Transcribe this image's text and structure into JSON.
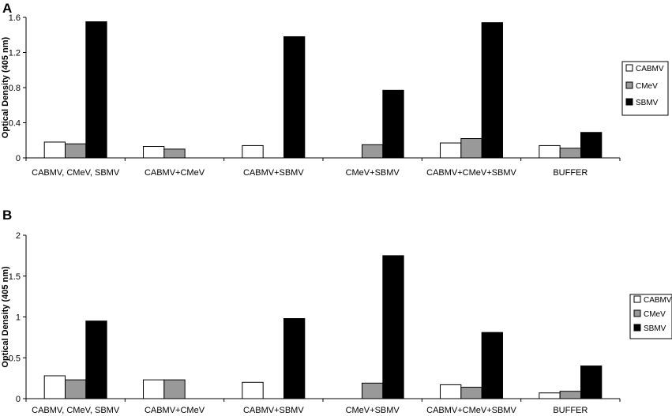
{
  "chart_data": [
    {
      "panel": "A",
      "type": "bar",
      "ylabel": "Optical Density (405 nm)",
      "ylim": [
        0,
        1.6
      ],
      "yticks": [
        "0",
        "0.4",
        "0.8",
        "1.2",
        "1.6"
      ],
      "categories": [
        "CABMV, CMeV, SBMV",
        "CABMV+CMeV",
        "CABMV+SBMV",
        "CMeV+SBMV",
        "CABMV+CMeV+SBMV",
        "BUFFER"
      ],
      "series": [
        {
          "name": "CABMV",
          "color": "#ffffff",
          "values": [
            0.18,
            0.13,
            0.14,
            null,
            0.17,
            0.14
          ]
        },
        {
          "name": "CMeV",
          "color": "#999999",
          "values": [
            0.16,
            0.1,
            null,
            0.15,
            0.22,
            0.11
          ]
        },
        {
          "name": "SBMV",
          "color": "#000000",
          "values": [
            1.55,
            null,
            1.38,
            0.77,
            1.54,
            0.29
          ]
        }
      ],
      "legend_position": "right",
      "grid": false
    },
    {
      "panel": "B",
      "type": "bar",
      "ylabel": "Optical Density (405 nm)",
      "ylim": [
        0,
        2
      ],
      "yticks": [
        "0",
        "0.5",
        "1",
        "1.5",
        "2"
      ],
      "categories": [
        "CABMV, CMeV, SBMV",
        "CABMV+CMeV",
        "CABMV+SBMV",
        "CMeV+SBMV",
        "CABMV+CMeV+SBMV",
        "BUFFER"
      ],
      "series": [
        {
          "name": "CABMV",
          "color": "#ffffff",
          "values": [
            0.28,
            0.23,
            0.2,
            null,
            0.17,
            0.07
          ]
        },
        {
          "name": "CMeV",
          "color": "#999999",
          "values": [
            0.23,
            0.23,
            null,
            0.19,
            0.14,
            0.09
          ]
        },
        {
          "name": "SBMV",
          "color": "#000000",
          "values": [
            0.95,
            null,
            0.98,
            1.75,
            0.81,
            0.4
          ]
        }
      ],
      "legend_position": "right",
      "grid": false
    }
  ]
}
